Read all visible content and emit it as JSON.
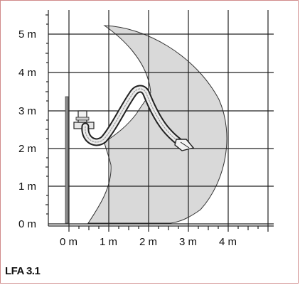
{
  "diagram": {
    "y_axis_labels": [
      "5 m",
      "4 m",
      "3 m",
      "2 m",
      "1 m",
      "0 m"
    ],
    "x_axis_labels": [
      "0 m",
      "1 m",
      "2 m",
      "3 m",
      "4 m"
    ],
    "caption": "LFA 3.1",
    "colors": {
      "reach_area": "#d9d9d9",
      "grid": "#222222",
      "arm": "#333333",
      "frame": "#d08a8a"
    }
  }
}
